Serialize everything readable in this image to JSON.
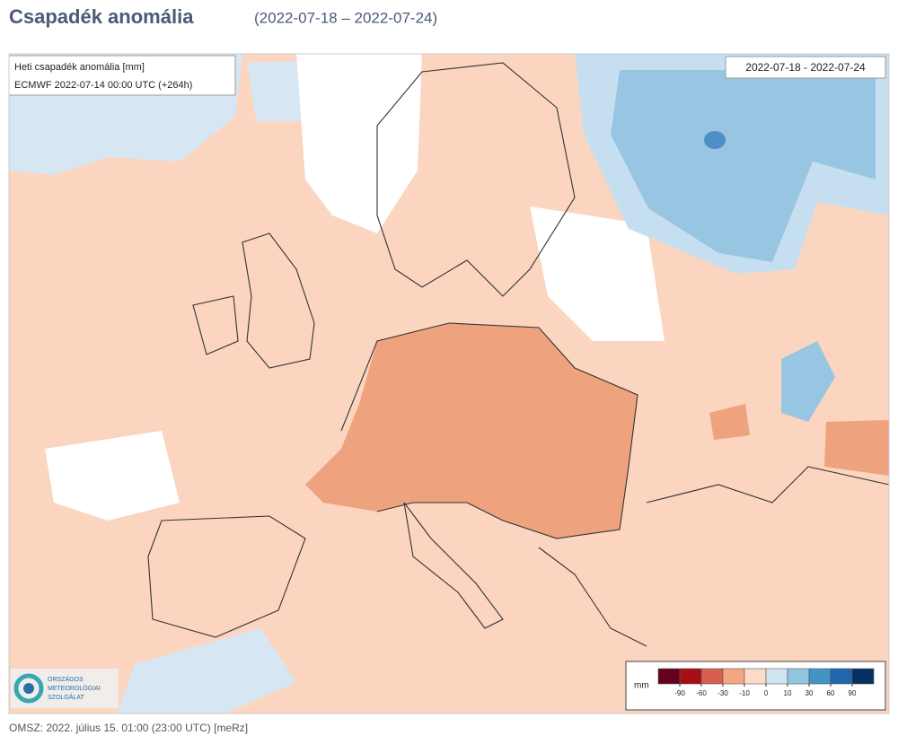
{
  "header": {
    "title": "Csapadék anomália",
    "subtitle": "(2022-07-18 – 2022-07-24)"
  },
  "map": {
    "info_title": "Heti csapadék anomália [mm]",
    "info_model": "ECMWF 2022-07-14 00:00 UTC (+264h)",
    "period": "2022-07-18 - 2022-07-24"
  },
  "logo": {
    "lines": [
      "ORSZÁGOS",
      "METEOROLÓGIAI",
      "SZOLGÁLAT"
    ]
  },
  "legend": {
    "unit": "mm",
    "ticks": [
      -90,
      -60,
      -30,
      -10,
      0,
      10,
      30,
      60,
      90
    ],
    "colors": [
      "#67001f",
      "#a50f15",
      "#d6604d",
      "#f4a582",
      "#fddbc7",
      "#d1e5f0",
      "#92c5de",
      "#4393c3",
      "#2166ac",
      "#053061"
    ]
  },
  "footer": {
    "text": "OMSZ: 2022. július 15. 01:00 (23:00  UTC)  [meRz]"
  }
}
